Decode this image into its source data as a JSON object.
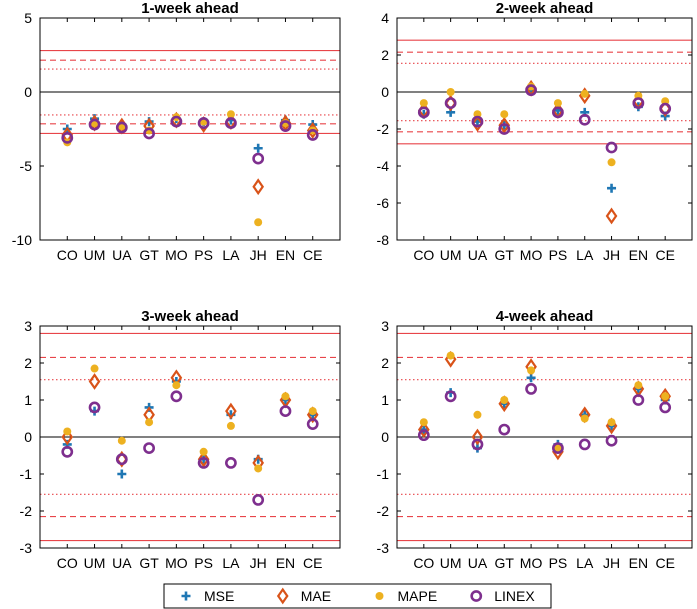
{
  "legend": {
    "placement": "bottom-center",
    "entries": [
      {
        "name": "MSE",
        "marker": "plus",
        "color": "#1f77b4"
      },
      {
        "name": "MAE",
        "marker": "diamond",
        "color": "#d95319"
      },
      {
        "name": "MAPE",
        "marker": "dot",
        "color": "#edb120"
      },
      {
        "name": "LINEX",
        "marker": "circle",
        "color": "#7e2f8e"
      }
    ]
  },
  "colors": {
    "reference_lines": "#e8454a",
    "zero_line": "#000000"
  },
  "chart_data": [
    {
      "type": "scatter",
      "title": "1-week ahead",
      "categories": [
        "CO",
        "UM",
        "UA",
        "GT",
        "MO",
        "PS",
        "LA",
        "JH",
        "EN",
        "CE"
      ],
      "ylim": [
        -10,
        5
      ],
      "yticks": [
        -10,
        -5,
        0,
        5
      ],
      "grid": false,
      "reference_lines": {
        "solid": 2.8,
        "dashed": 2.15,
        "dotted": 1.55
      },
      "series": [
        {
          "name": "MSE",
          "values": [
            -2.5,
            -1.8,
            -2.2,
            -2.0,
            -1.8,
            -2.0,
            -1.9,
            -3.8,
            -1.9,
            -2.2
          ]
        },
        {
          "name": "MAE",
          "values": [
            -2.9,
            -2.1,
            -2.3,
            -2.3,
            -1.9,
            -2.2,
            -2.0,
            -6.4,
            -2.1,
            -2.6
          ]
        },
        {
          "name": "MAPE",
          "values": [
            -3.4,
            -2.1,
            -2.3,
            -2.6,
            -1.7,
            -2.0,
            -1.5,
            -8.8,
            -2.1,
            -2.6
          ]
        },
        {
          "name": "LINEX",
          "values": [
            -3.1,
            -2.2,
            -2.4,
            -2.8,
            -2.0,
            -2.1,
            -2.1,
            -4.5,
            -2.3,
            -2.9
          ]
        }
      ]
    },
    {
      "type": "scatter",
      "title": "2-week ahead",
      "categories": [
        "CO",
        "UM",
        "UA",
        "GT",
        "MO",
        "PS",
        "LA",
        "JH",
        "EN",
        "CE"
      ],
      "ylim": [
        -8,
        4
      ],
      "yticks": [
        -8,
        -6,
        -4,
        -2,
        0,
        2,
        4
      ],
      "grid": false,
      "reference_lines": {
        "solid": 2.8,
        "dashed": 2.15,
        "dotted": 1.55
      },
      "series": [
        {
          "name": "MSE",
          "values": [
            -1.2,
            -1.1,
            -1.6,
            -1.8,
            0.1,
            -1.0,
            -1.1,
            -5.2,
            -0.8,
            -1.3
          ]
        },
        {
          "name": "MAE",
          "values": [
            -1.0,
            -0.6,
            -1.7,
            -1.8,
            0.2,
            -1.0,
            -0.2,
            -6.7,
            -0.5,
            -0.9
          ]
        },
        {
          "name": "MAPE",
          "values": [
            -0.6,
            0.0,
            -1.2,
            -1.2,
            0.3,
            -0.6,
            -0.1,
            -3.8,
            -0.2,
            -0.5
          ]
        },
        {
          "name": "LINEX",
          "values": [
            -1.1,
            -0.6,
            -1.6,
            -2.0,
            0.1,
            -1.1,
            -1.5,
            -3.0,
            -0.6,
            -0.9
          ]
        }
      ]
    },
    {
      "type": "scatter",
      "title": "3-week ahead",
      "categories": [
        "CO",
        "UM",
        "UA",
        "GT",
        "MO",
        "PS",
        "LA",
        "JH",
        "EN",
        "CE"
      ],
      "ylim": [
        -3,
        3
      ],
      "yticks": [
        -3,
        -2,
        -1,
        0,
        1,
        2,
        3
      ],
      "grid": false,
      "reference_lines": {
        "solid": 2.8,
        "dashed": 2.15,
        "dotted": 1.55
      },
      "series": [
        {
          "name": "MSE",
          "values": [
            -0.2,
            0.7,
            -1.0,
            0.8,
            1.5,
            -0.6,
            0.6,
            -0.6,
            1.0,
            0.6
          ]
        },
        {
          "name": "MAE",
          "values": [
            0.0,
            1.5,
            -0.6,
            0.6,
            1.6,
            -0.6,
            0.7,
            -0.7,
            1.0,
            0.6
          ]
        },
        {
          "name": "MAPE",
          "values": [
            0.15,
            1.85,
            -0.1,
            0.4,
            1.4,
            -0.4,
            0.3,
            -0.85,
            1.1,
            0.7
          ]
        },
        {
          "name": "LINEX",
          "values": [
            -0.4,
            0.8,
            -0.6,
            -0.3,
            1.1,
            -0.7,
            -0.7,
            -1.7,
            0.7,
            0.35
          ]
        }
      ]
    },
    {
      "type": "scatter",
      "title": "4-week ahead",
      "categories": [
        "CO",
        "UM",
        "UA",
        "GT",
        "MO",
        "PS",
        "LA",
        "JH",
        "EN",
        "CE"
      ],
      "ylim": [
        -3,
        3
      ],
      "yticks": [
        -3,
        -2,
        -1,
        0,
        1,
        2,
        3
      ],
      "grid": false,
      "reference_lines": {
        "solid": 2.8,
        "dashed": 2.15,
        "dotted": 1.55
      },
      "series": [
        {
          "name": "MSE",
          "values": [
            0.2,
            1.2,
            -0.3,
            0.9,
            1.6,
            -0.2,
            0.6,
            0.3,
            1.3,
            1.0
          ]
        },
        {
          "name": "MAE",
          "values": [
            0.2,
            2.1,
            0.0,
            0.9,
            1.9,
            -0.4,
            0.6,
            0.3,
            1.3,
            1.1
          ]
        },
        {
          "name": "MAPE",
          "values": [
            0.4,
            2.2,
            0.6,
            1.0,
            1.8,
            -0.3,
            0.5,
            0.4,
            1.4,
            1.1
          ]
        },
        {
          "name": "LINEX",
          "values": [
            0.05,
            1.1,
            -0.2,
            0.2,
            1.3,
            -0.3,
            -0.2,
            -0.1,
            1.0,
            0.8
          ]
        }
      ]
    }
  ]
}
